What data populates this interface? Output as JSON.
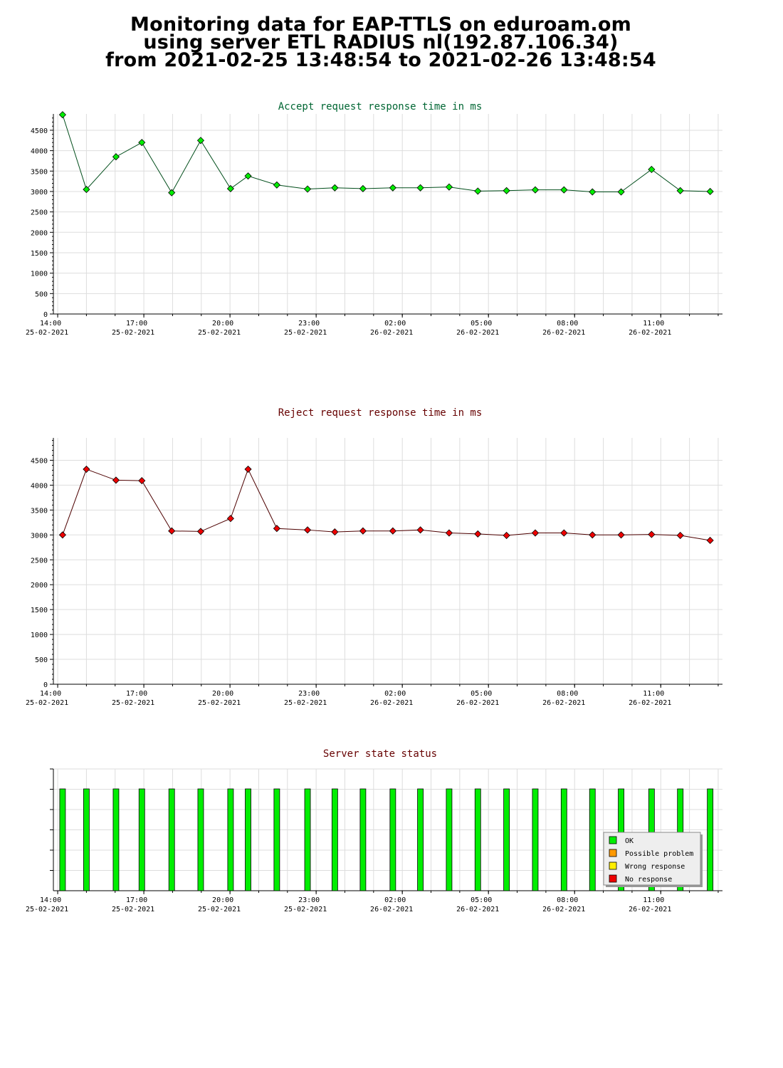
{
  "header": {
    "line1": "Monitoring data for EAP-TTLS on eduroam.om",
    "line2": "using server ETL RADIUS nl(192.87.106.34)",
    "line3": "from 2021-02-25 13:48:54 to 2021-02-26 13:48:54"
  },
  "colors": {
    "accept_title": "#006633",
    "reject_title": "#660000",
    "status_title": "#660000",
    "accept_point": "#00ee00",
    "reject_point": "#ee0000",
    "grid": "#dddddd",
    "ok": "#00ee00",
    "possible_problem": "#ff9900",
    "wrong_response": "#ffee00",
    "no_response": "#ee0000"
  },
  "chart_data": [
    {
      "type": "line",
      "title": "Accept request response time in ms",
      "xlabel": "",
      "ylabel": "",
      "ylim": [
        0,
        4900
      ],
      "yticks": [
        0,
        500,
        1000,
        1500,
        2000,
        2500,
        3000,
        3500,
        4000,
        4500
      ],
      "x_range_hours": [
        13.85,
        37.15
      ],
      "x_ticks": [
        {
          "time": "14:00",
          "date": "25-02-2021",
          "hour": 14
        },
        {
          "time": "17:00",
          "date": "25-02-2021",
          "hour": 17
        },
        {
          "time": "20:00",
          "date": "25-02-2021",
          "hour": 20
        },
        {
          "time": "23:00",
          "date": "25-02-2021",
          "hour": 23
        },
        {
          "time": "02:00",
          "date": "26-02-2021",
          "hour": 26
        },
        {
          "time": "05:00",
          "date": "26-02-2021",
          "hour": 29
        },
        {
          "time": "08:00",
          "date": "26-02-2021",
          "hour": 32
        },
        {
          "time": "11:00",
          "date": "26-02-2021",
          "hour": 35
        }
      ],
      "series": [
        {
          "x": [
            14.17,
            15.0,
            16.03,
            16.93,
            17.97,
            18.98,
            20.02,
            20.63,
            21.63,
            22.7,
            23.65,
            24.63,
            25.67,
            26.63,
            27.63,
            28.63,
            29.63,
            30.63,
            31.63,
            32.62,
            33.62,
            34.68,
            35.68,
            36.72
          ],
          "values": [
            4880,
            3050,
            3850,
            4200,
            2970,
            4250,
            3070,
            3380,
            3160,
            3060,
            3090,
            3070,
            3090,
            3090,
            3110,
            3010,
            3020,
            3040,
            3040,
            2990,
            2990,
            3540,
            3020,
            3000
          ]
        }
      ]
    },
    {
      "type": "line",
      "title": "Reject request response time in ms",
      "xlabel": "",
      "ylabel": "",
      "ylim": [
        0,
        4950
      ],
      "yticks": [
        0,
        500,
        1000,
        1500,
        2000,
        2500,
        3000,
        3500,
        4000,
        4500
      ],
      "x_range_hours": [
        13.85,
        37.15
      ],
      "x_ticks": [
        {
          "time": "14:00",
          "date": "25-02-2021",
          "hour": 14
        },
        {
          "time": "17:00",
          "date": "25-02-2021",
          "hour": 17
        },
        {
          "time": "20:00",
          "date": "25-02-2021",
          "hour": 20
        },
        {
          "time": "23:00",
          "date": "25-02-2021",
          "hour": 23
        },
        {
          "time": "02:00",
          "date": "26-02-2021",
          "hour": 26
        },
        {
          "time": "05:00",
          "date": "26-02-2021",
          "hour": 29
        },
        {
          "time": "08:00",
          "date": "26-02-2021",
          "hour": 32
        },
        {
          "time": "11:00",
          "date": "26-02-2021",
          "hour": 35
        }
      ],
      "series": [
        {
          "x": [
            14.17,
            15.0,
            16.03,
            16.93,
            17.97,
            18.98,
            20.02,
            20.63,
            21.63,
            22.7,
            23.65,
            24.63,
            25.67,
            26.63,
            27.63,
            28.63,
            29.63,
            30.63,
            31.63,
            32.62,
            33.62,
            34.68,
            35.68,
            36.72
          ],
          "values": [
            3000,
            4320,
            4100,
            4090,
            3080,
            3070,
            3330,
            4320,
            3130,
            3100,
            3060,
            3080,
            3080,
            3100,
            3040,
            3020,
            2990,
            3040,
            3040,
            3000,
            3000,
            3010,
            2990,
            2890
          ]
        }
      ]
    },
    {
      "type": "bar",
      "title": "Server state status",
      "xlabel": "",
      "ylabel": "",
      "x_range_hours": [
        13.85,
        37.15
      ],
      "x_ticks": [
        {
          "time": "14:00",
          "date": "25-02-2021",
          "hour": 14
        },
        {
          "time": "17:00",
          "date": "25-02-2021",
          "hour": 17
        },
        {
          "time": "20:00",
          "date": "25-02-2021",
          "hour": 20
        },
        {
          "time": "23:00",
          "date": "25-02-2021",
          "hour": 23
        },
        {
          "time": "02:00",
          "date": "26-02-2021",
          "hour": 26
        },
        {
          "time": "05:00",
          "date": "26-02-2021",
          "hour": 29
        },
        {
          "time": "08:00",
          "date": "26-02-2021",
          "hour": 32
        },
        {
          "time": "11:00",
          "date": "26-02-2021",
          "hour": 35
        }
      ],
      "x": [
        14.17,
        15.0,
        16.03,
        16.93,
        17.97,
        18.98,
        20.02,
        20.63,
        21.63,
        22.7,
        23.65,
        24.63,
        25.67,
        26.63,
        27.63,
        28.63,
        29.63,
        30.63,
        31.63,
        32.62,
        33.62,
        34.68,
        35.68,
        36.72
      ],
      "states": [
        "OK",
        "OK",
        "OK",
        "OK",
        "OK",
        "OK",
        "OK",
        "OK",
        "OK",
        "OK",
        "OK",
        "OK",
        "OK",
        "OK",
        "OK",
        "OK",
        "OK",
        "OK",
        "OK",
        "OK",
        "OK",
        "OK",
        "OK",
        "OK"
      ],
      "legend_position": "bottom-right",
      "legend": [
        {
          "label": "OK",
          "color": "#00ee00"
        },
        {
          "label": "Possible problem",
          "color": "#ff9900"
        },
        {
          "label": "Wrong response",
          "color": "#ffee00"
        },
        {
          "label": "No response",
          "color": "#ee0000"
        }
      ]
    }
  ]
}
